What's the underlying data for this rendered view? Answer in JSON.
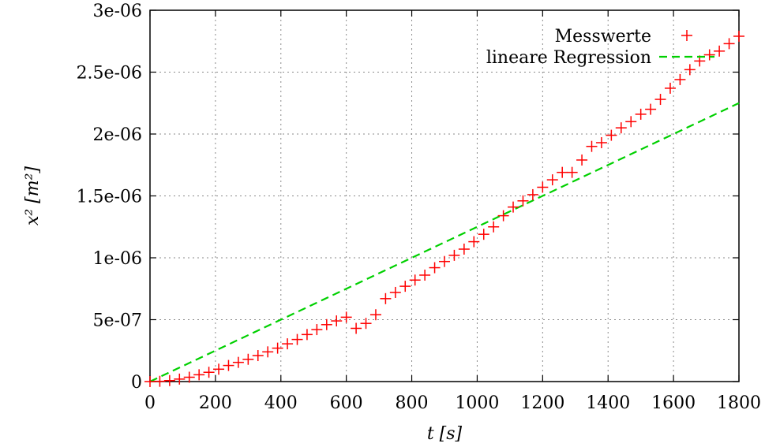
{
  "chart_data": {
    "type": "scatter",
    "xlabel": "t [s]",
    "ylabel": "x² [m²]",
    "xlim": [
      0,
      1800
    ],
    "ylim": [
      0,
      3e-06
    ],
    "grid": true,
    "legend_position": "top-right",
    "x_ticks": [
      0,
      200,
      400,
      600,
      800,
      1000,
      1200,
      1400,
      1600,
      1800
    ],
    "x_tick_labels": [
      "0",
      "200",
      "400",
      "600",
      "800",
      "1000",
      "1200",
      "1400",
      "1600",
      "1800"
    ],
    "y_ticks": [
      0,
      5e-07,
      1e-06,
      1.5e-06,
      2e-06,
      2.5e-06,
      3e-06
    ],
    "y_tick_labels": [
      "0",
      "5e-07",
      "1e-06",
      "1.5e-06",
      "2e-06",
      "2.5e-06",
      "3e-06"
    ],
    "series": [
      {
        "name": "Messwerte",
        "kind": "scatter",
        "marker": "plus",
        "color": "#ff0000",
        "points": [
          [
            0,
            0
          ],
          [
            30,
            2e-09
          ],
          [
            60,
            8e-09
          ],
          [
            90,
            2e-08
          ],
          [
            120,
            3.5e-08
          ],
          [
            150,
            5.5e-08
          ],
          [
            180,
            7.5e-08
          ],
          [
            210,
            1e-07
          ],
          [
            240,
            1.3e-07
          ],
          [
            270,
            1.55e-07
          ],
          [
            300,
            1.8e-07
          ],
          [
            330,
            2.1e-07
          ],
          [
            360,
            2.4e-07
          ],
          [
            390,
            2.7e-07
          ],
          [
            420,
            3.05e-07
          ],
          [
            450,
            3.4e-07
          ],
          [
            480,
            3.8e-07
          ],
          [
            510,
            4.2e-07
          ],
          [
            540,
            4.6e-07
          ],
          [
            570,
            4.9e-07
          ],
          [
            600,
            5.2e-07
          ],
          [
            630,
            4.3e-07
          ],
          [
            660,
            4.7e-07
          ],
          [
            690,
            5.4e-07
          ],
          [
            720,
            6.7e-07
          ],
          [
            750,
            7.2e-07
          ],
          [
            780,
            7.7e-07
          ],
          [
            810,
            8.2e-07
          ],
          [
            840,
            8.6e-07
          ],
          [
            870,
            9.2e-07
          ],
          [
            900,
            9.7e-07
          ],
          [
            930,
            1.02e-06
          ],
          [
            960,
            1.07e-06
          ],
          [
            990,
            1.13e-06
          ],
          [
            1020,
            1.19e-06
          ],
          [
            1050,
            1.25e-06
          ],
          [
            1080,
            1.34e-06
          ],
          [
            1110,
            1.41e-06
          ],
          [
            1140,
            1.46e-06
          ],
          [
            1170,
            1.51e-06
          ],
          [
            1200,
            1.57e-06
          ],
          [
            1230,
            1.63e-06
          ],
          [
            1260,
            1.69e-06
          ],
          [
            1290,
            1.69e-06
          ],
          [
            1320,
            1.79e-06
          ],
          [
            1350,
            1.9e-06
          ],
          [
            1380,
            1.93e-06
          ],
          [
            1410,
            1.99e-06
          ],
          [
            1440,
            2.05e-06
          ],
          [
            1470,
            2.1e-06
          ],
          [
            1500,
            2.16e-06
          ],
          [
            1530,
            2.2e-06
          ],
          [
            1560,
            2.28e-06
          ],
          [
            1590,
            2.37e-06
          ],
          [
            1620,
            2.44e-06
          ],
          [
            1650,
            2.52e-06
          ],
          [
            1680,
            2.59e-06
          ],
          [
            1710,
            2.64e-06
          ],
          [
            1740,
            2.67e-06
          ],
          [
            1770,
            2.73e-06
          ],
          [
            1800,
            2.79e-06
          ]
        ]
      },
      {
        "name": "lineare Regression",
        "kind": "line",
        "style": "dashed",
        "color": "#00d000",
        "points": [
          [
            0,
            0
          ],
          [
            1800,
            2.25e-06
          ]
        ]
      }
    ]
  }
}
